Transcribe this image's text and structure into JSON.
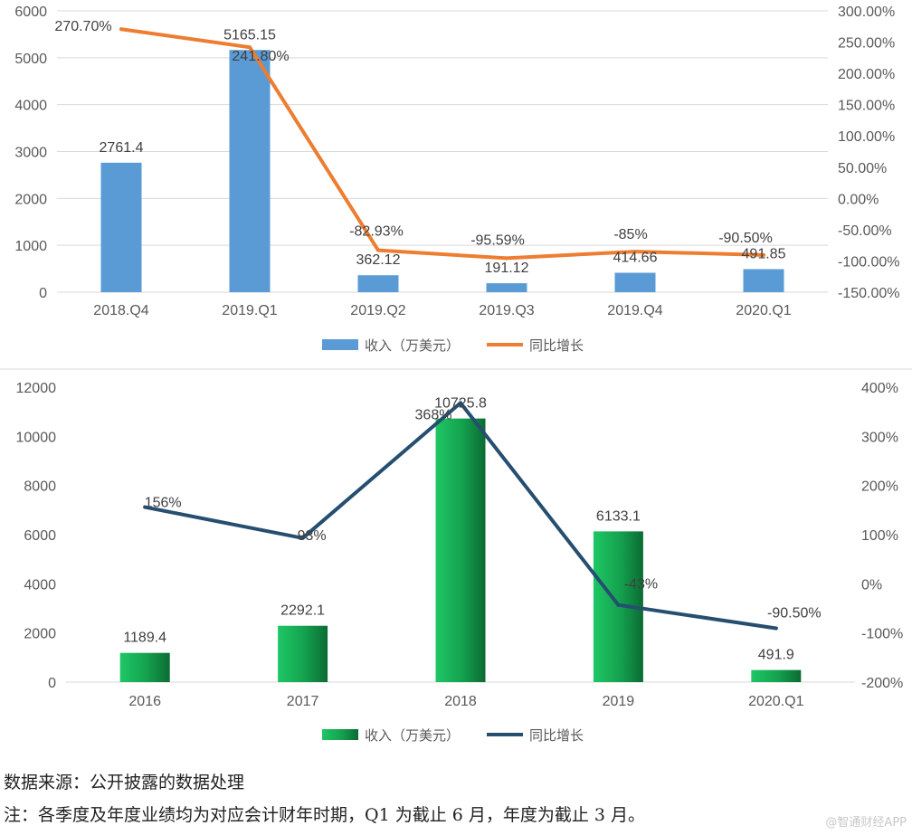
{
  "chart_data": [
    {
      "type": "bar",
      "categories": [
        "2018.Q4",
        "2019.Q1",
        "2019.Q2",
        "2019.Q3",
        "2019.Q4",
        "2020.Q1"
      ],
      "ylim": [
        0,
        6000
      ],
      "y_ticks": [
        "0",
        "1000",
        "2000",
        "3000",
        "4000",
        "5000",
        "6000"
      ],
      "y2lim": [
        -150,
        300
      ],
      "y2_ticks": [
        "-150.00%",
        "-100.00%",
        "-50.00%",
        "0.00%",
        "50.00%",
        "100.00%",
        "150.00%",
        "200.00%",
        "250.00%",
        "300.00%"
      ],
      "grid": true,
      "legend_position": "bottom",
      "series": [
        {
          "name": "收入（万美元）",
          "kind": "bar",
          "color": "#5b9bd5",
          "values": [
            2761.4,
            5165.15,
            362.12,
            191.12,
            414.66,
            491.85
          ],
          "labels": [
            "2761.4",
            "5165.15",
            "362.12",
            "191.12",
            "414.66",
            "491.85"
          ]
        },
        {
          "name": "同比增长",
          "kind": "line",
          "axis": "right",
          "color": "#ed7d31",
          "values": [
            270.7,
            241.8,
            -82.93,
            -95.59,
            -85,
            -90.5
          ],
          "labels": [
            "270.70%",
            "241.80%",
            "-82.93%",
            "-95.59%",
            "-85%",
            "-90.50%"
          ]
        }
      ]
    },
    {
      "type": "bar",
      "categories": [
        "2016",
        "2017",
        "2018",
        "2019",
        "2020.Q1"
      ],
      "ylim": [
        0,
        12000
      ],
      "y_ticks": [
        "0",
        "2000",
        "4000",
        "6000",
        "8000",
        "10000",
        "12000"
      ],
      "y2lim": [
        -200,
        400
      ],
      "y2_ticks": [
        "-200%",
        "-100%",
        "0%",
        "100%",
        "200%",
        "300%",
        "400%"
      ],
      "grid": false,
      "legend_position": "bottom",
      "series": [
        {
          "name": "收入（万美元）",
          "kind": "bar",
          "color": "#1db954",
          "values": [
            1189.4,
            2292.1,
            10725.8,
            6133.1,
            491.9
          ],
          "labels": [
            "1189.4",
            "2292.1",
            "10725.8",
            "6133.1",
            "491.9"
          ]
        },
        {
          "name": "同比增长",
          "kind": "line",
          "axis": "right",
          "color": "#264e70",
          "values": [
            156,
            93,
            368,
            -43,
            -90.5
          ],
          "labels": [
            "156%",
            "93%",
            "368%",
            "-43%",
            "-90.50%"
          ]
        }
      ]
    }
  ],
  "notes": {
    "source": "数据来源：公开披露的数据处理",
    "remark": "注：各季度及年度业绩均为对应会计财年时期，Q1 为截止 6 月，年度为截止 3 月。"
  },
  "watermark": "@智通财经APP"
}
